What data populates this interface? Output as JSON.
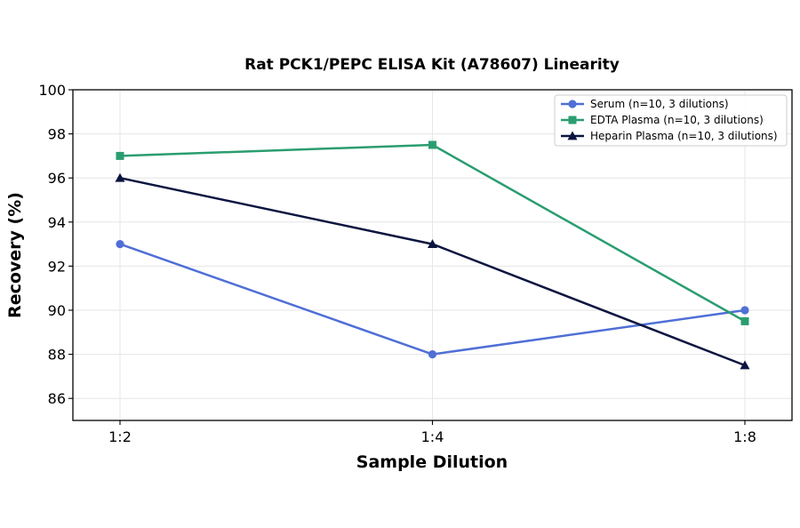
{
  "chart_data": {
    "type": "line",
    "title": "Rat PCK1/PEPC ELISA Kit (A78607) Linearity",
    "xlabel": "Sample Dilution",
    "ylabel": "Recovery (%)",
    "categories": [
      "1:2",
      "1:4",
      "1:8"
    ],
    "ylim": [
      85,
      100
    ],
    "yticks": [
      86,
      88,
      90,
      92,
      94,
      96,
      98,
      100
    ],
    "grid": true,
    "legend_position": "top-right",
    "series": [
      {
        "name": "Serum (n=10, 3 dilutions)",
        "values": [
          93,
          88,
          90
        ],
        "color": "#4f6fd6",
        "marker": "circle"
      },
      {
        "name": "EDTA Plasma (n=10, 3 dilutions)",
        "values": [
          97,
          97.5,
          89.5
        ],
        "color": "#2a9d6f",
        "marker": "square"
      },
      {
        "name": "Heparin Plasma (n=10, 3 dilutions)",
        "values": [
          96,
          93,
          87.5
        ],
        "color": "#0c1540",
        "marker": "triangle"
      }
    ]
  }
}
